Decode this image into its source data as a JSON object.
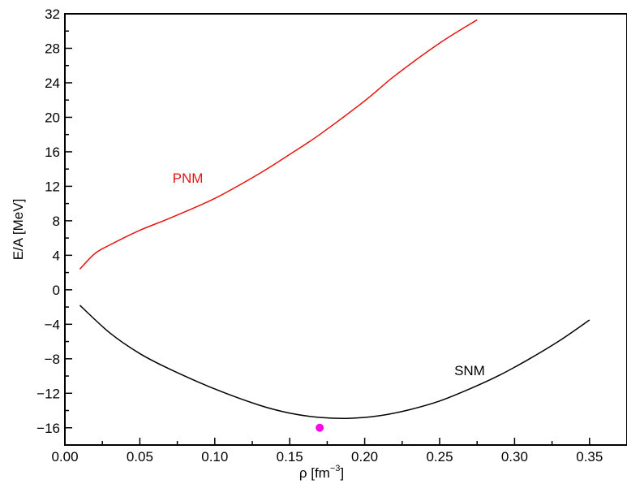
{
  "chart_data": {
    "type": "line",
    "title": "",
    "xlabel": "ρ [fm",
    "xlabel_sup": "−3",
    "xlabel_end": "]",
    "ylabel": "E/A [MeV]",
    "xlim": [
      0.0,
      0.375
    ],
    "ylim": [
      -18,
      32
    ],
    "x_ticks": [
      "0.00",
      "0.05",
      "0.10",
      "0.15",
      "0.20",
      "0.25",
      "0.30",
      "0.35"
    ],
    "y_ticks": [
      "−16",
      "−12",
      "−8",
      "−4",
      "0",
      "4",
      "8",
      "12",
      "16",
      "20",
      "24",
      "28",
      "32"
    ],
    "grid": false,
    "series": [
      {
        "name": "PNM",
        "color": "#e8120f",
        "x": [
          0.01,
          0.02,
          0.03,
          0.05,
          0.07,
          0.1,
          0.13,
          0.15,
          0.17,
          0.2,
          0.22,
          0.25,
          0.275
        ],
        "y": [
          2.4,
          4.2,
          5.2,
          6.9,
          8.3,
          10.6,
          13.5,
          15.7,
          18.0,
          21.9,
          24.8,
          28.6,
          31.3
        ]
      },
      {
        "name": "SNM",
        "color": "#000000",
        "x": [
          0.01,
          0.03,
          0.05,
          0.07,
          0.1,
          0.13,
          0.15,
          0.17,
          0.19,
          0.21,
          0.23,
          0.25,
          0.27,
          0.29,
          0.31,
          0.33,
          0.35
        ],
        "y": [
          -1.8,
          -5.0,
          -7.4,
          -9.2,
          -11.5,
          -13.4,
          -14.3,
          -14.8,
          -14.9,
          -14.6,
          -13.9,
          -12.9,
          -11.5,
          -9.9,
          -8.0,
          -5.9,
          -3.5
        ]
      }
    ],
    "points": [
      {
        "x": 0.17,
        "y": -16,
        "color": "#f20de6"
      }
    ],
    "annotations": [
      {
        "text": "PNM",
        "color": "#e8120f",
        "x": 0.082,
        "y": 12.4
      },
      {
        "text": "SNM",
        "color": "#000000",
        "x": 0.27,
        "y": -9.9
      }
    ]
  }
}
